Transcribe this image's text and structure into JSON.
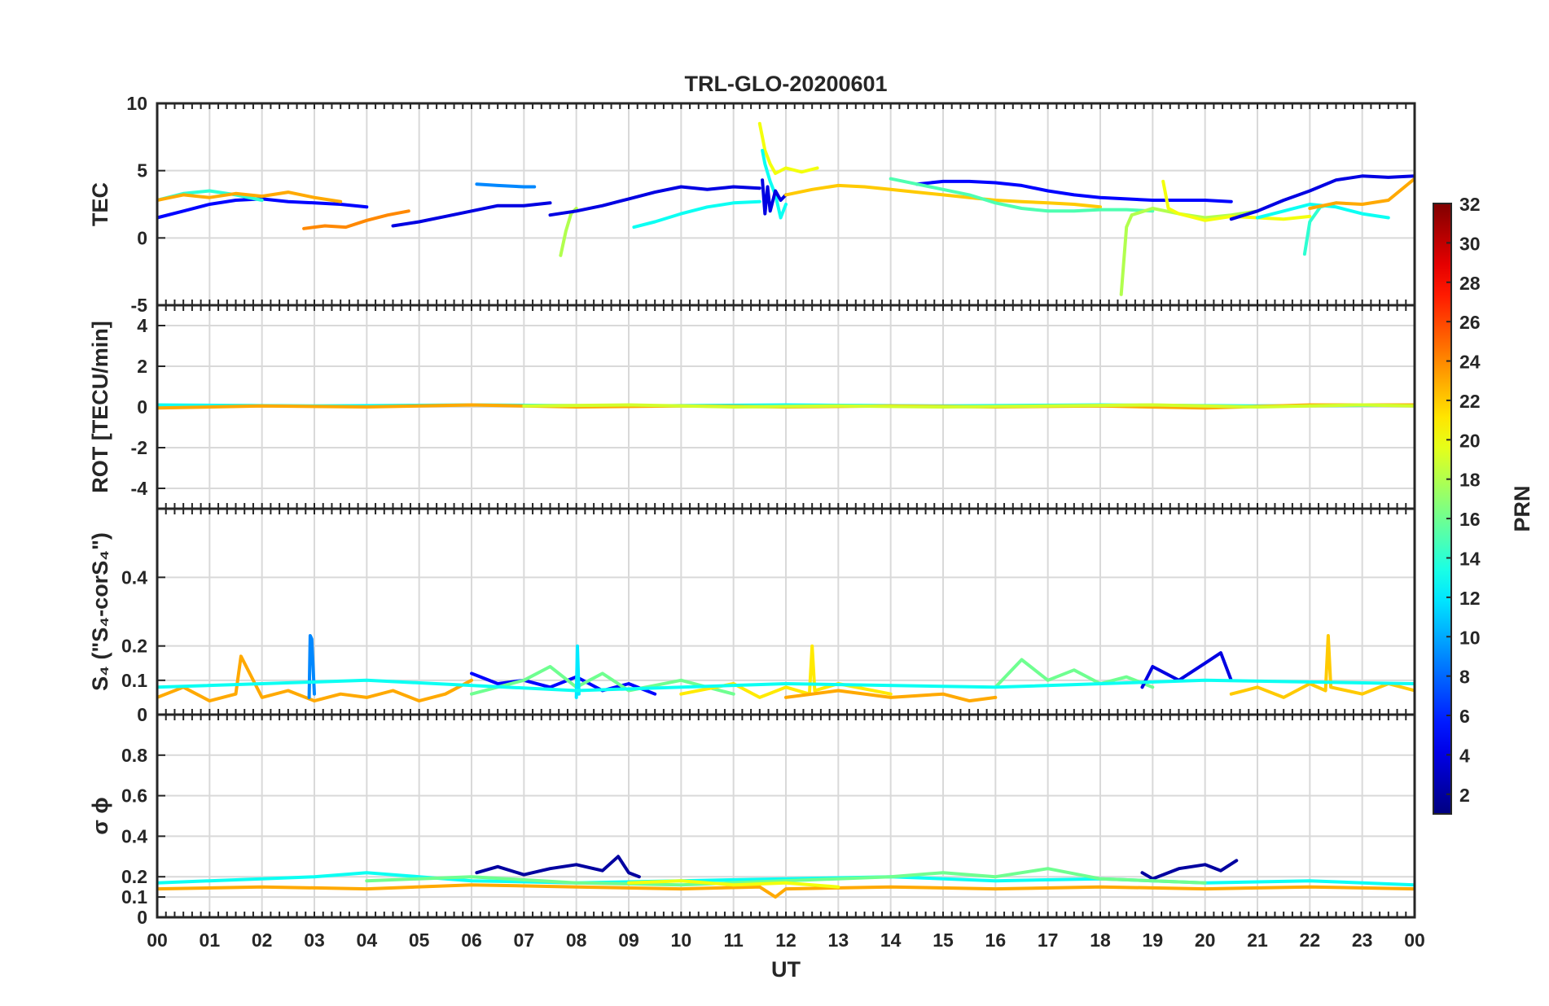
{
  "chart_data": {
    "type": "line",
    "title": "TRL-GLO-20200601",
    "xlabel": "UT",
    "x_tick_labels": [
      "00",
      "01",
      "02",
      "03",
      "04",
      "05",
      "06",
      "07",
      "08",
      "09",
      "10",
      "11",
      "12",
      "13",
      "14",
      "15",
      "16",
      "17",
      "18",
      "19",
      "20",
      "21",
      "22",
      "23",
      "00"
    ],
    "xlim": [
      0,
      24
    ],
    "grid": true,
    "panels": [
      {
        "id": "tec",
        "ylabel": "TEC",
        "ylim": [
          -5,
          10
        ],
        "yticks": [
          -5,
          0,
          5,
          10
        ],
        "ytick_labels": [
          "-5",
          "0",
          "5",
          "10"
        ],
        "series": [
          {
            "prn": 5,
            "x": [
              0,
              0.5,
              1,
              1.5,
              2,
              2.5,
              3,
              3.5,
              4
            ],
            "y": [
              1.5,
              2,
              2.5,
              2.8,
              2.9,
              2.7,
              2.6,
              2.5,
              2.3
            ]
          },
          {
            "prn": 14,
            "x": [
              0,
              0.5,
              1,
              1.5,
              2
            ],
            "y": [
              2.8,
              3.3,
              3.5,
              3.2,
              2.8
            ]
          },
          {
            "prn": 23,
            "x": [
              0,
              0.5,
              1,
              1.5,
              2,
              2.5,
              3,
              3.5
            ],
            "y": [
              2.8,
              3.2,
              3,
              3.3,
              3.1,
              3.4,
              3.0,
              2.7
            ]
          },
          {
            "prn": 24,
            "x": [
              2.8,
              3.2,
              3.6,
              4.0,
              4.4,
              4.8
            ],
            "y": [
              0.7,
              0.9,
              0.8,
              1.3,
              1.7,
              2.0
            ]
          },
          {
            "prn": 4,
            "x": [
              4.5,
              5,
              5.5,
              6,
              6.5,
              7,
              7.5
            ],
            "y": [
              0.9,
              1.2,
              1.6,
              2.0,
              2.4,
              2.4,
              2.6
            ]
          },
          {
            "prn": 9,
            "x": [
              6.1,
              6.5,
              7,
              7.2
            ],
            "y": [
              4.0,
              3.9,
              3.8,
              3.8
            ]
          },
          {
            "prn": 18,
            "x": [
              7.7,
              7.8,
              7.9,
              8.0
            ],
            "y": [
              -1.3,
              0.5,
              1.8,
              2.2
            ]
          },
          {
            "prn": 4,
            "x": [
              7.5,
              8,
              8.5,
              9,
              9.5,
              10,
              10.5,
              11,
              11.5
            ],
            "y": [
              1.7,
              2.0,
              2.4,
              2.9,
              3.4,
              3.8,
              3.6,
              3.8,
              3.7
            ]
          },
          {
            "prn": 13,
            "x": [
              9.1,
              9.5,
              10,
              10.5,
              11,
              11.5
            ],
            "y": [
              0.8,
              1.2,
              1.8,
              2.3,
              2.6,
              2.7
            ]
          },
          {
            "prn": 20,
            "x": [
              11.5,
              11.55,
              11.6,
              11.7,
              11.8,
              12.0,
              12.3,
              12.6
            ],
            "y": [
              8.5,
              7.5,
              6.5,
              5.5,
              4.8,
              5.2,
              4.9,
              5.2
            ]
          },
          {
            "prn": 13,
            "x": [
              11.55,
              11.6,
              11.7,
              11.8,
              11.9,
              12.0
            ],
            "y": [
              6.5,
              5.5,
              4.2,
              3.2,
              1.5,
              2.5
            ]
          },
          {
            "prn": 4,
            "x": [
              11.55,
              11.6,
              11.65,
              11.7,
              11.8,
              11.9,
              12.0
            ],
            "y": [
              4.3,
              1.8,
              3.8,
              2.0,
              3.5,
              2.8,
              3.2
            ]
          },
          {
            "prn": 22,
            "x": [
              12,
              12.5,
              13,
              13.5,
              14,
              14.5,
              15,
              15.5,
              16,
              16.5,
              17,
              17.5,
              18
            ],
            "y": [
              3.2,
              3.6,
              3.9,
              3.8,
              3.6,
              3.4,
              3.2,
              3.0,
              2.8,
              2.7,
              2.6,
              2.5,
              2.3
            ]
          },
          {
            "prn": 5,
            "x": [
              14.5,
              15,
              15.5,
              16,
              16.5,
              17,
              17.5,
              18,
              18.5,
              19,
              19.5,
              20,
              20.5
            ],
            "y": [
              4.0,
              4.2,
              4.2,
              4.1,
              3.9,
              3.5,
              3.2,
              3.0,
              2.9,
              2.8,
              2.8,
              2.8,
              2.7
            ]
          },
          {
            "prn": 15,
            "x": [
              14,
              14.5,
              15,
              15.5,
              16,
              16.5,
              17,
              17.5,
              18,
              18.5,
              19
            ],
            "y": [
              4.4,
              4.0,
              3.6,
              3.2,
              2.6,
              2.2,
              2.0,
              2.0,
              2.1,
              2.1,
              2.0
            ]
          },
          {
            "prn": 18,
            "x": [
              18.4,
              18.5,
              18.6,
              19,
              19.5,
              20,
              20.5,
              21
            ],
            "y": [
              -4.2,
              0.8,
              1.7,
              2.2,
              1.8,
              1.5,
              1.7,
              2.0
            ]
          },
          {
            "prn": 20,
            "x": [
              19.2,
              19.3,
              19.5,
              20,
              20.5,
              21,
              21.5,
              22
            ],
            "y": [
              4.2,
              2.2,
              1.8,
              1.3,
              1.6,
              1.5,
              1.4,
              1.6
            ]
          },
          {
            "prn": 13,
            "x": [
              21,
              21.5,
              22,
              22.5,
              23,
              23.5
            ],
            "y": [
              1.5,
              2.0,
              2.5,
              2.3,
              1.8,
              1.5
            ]
          },
          {
            "prn": 14,
            "x": [
              21.9,
              22.0,
              22.2,
              22.5
            ],
            "y": [
              -1.2,
              1.2,
              2.3,
              2.6
            ]
          },
          {
            "prn": 4,
            "x": [
              20.5,
              21,
              21.5,
              22,
              22.5,
              23,
              23.5,
              24
            ],
            "y": [
              1.4,
              2.0,
              2.8,
              3.5,
              4.3,
              4.6,
              4.5,
              4.6
            ]
          },
          {
            "prn": 23,
            "x": [
              22,
              22.5,
              23,
              23.5,
              24
            ],
            "y": [
              2.2,
              2.6,
              2.5,
              2.8,
              4.4
            ]
          }
        ]
      },
      {
        "id": "rot",
        "ylabel": "ROT [TECU/min]",
        "ylim": [
          -5,
          5
        ],
        "yticks": [
          -4,
          -2,
          0,
          2,
          4
        ],
        "ytick_labels": [
          "-4",
          "-2",
          "0",
          "2",
          "4"
        ],
        "series": [
          {
            "prn": 13,
            "x": [
              0,
              3,
              6,
              9,
              12,
              15,
              18,
              21,
              24
            ],
            "y": [
              0.1,
              0.05,
              0.1,
              0.05,
              0.1,
              0.05,
              0.1,
              0.05,
              0.1
            ]
          },
          {
            "prn": 23,
            "x": [
              0,
              2,
              4,
              6,
              8,
              10,
              12,
              14,
              16,
              18,
              20,
              22,
              24
            ],
            "y": [
              -0.05,
              0.05,
              0.0,
              0.1,
              0.0,
              0.05,
              0.0,
              0.05,
              0.0,
              0.05,
              -0.05,
              0.1,
              0.1
            ]
          },
          {
            "prn": 19,
            "x": [
              7,
              9,
              11,
              13,
              15,
              17,
              19,
              21,
              23,
              24
            ],
            "y": [
              0.05,
              0.1,
              0.0,
              0.05,
              0.0,
              0.05,
              0.1,
              0.0,
              0.1,
              0.05
            ]
          }
        ]
      },
      {
        "id": "s4",
        "ylabel": "S₄ (\"S₄-corS₄\")",
        "ylim": [
          0,
          0.6
        ],
        "yticks": [
          0,
          0.1,
          0.2,
          0.4
        ],
        "ytick_labels": [
          "0",
          "0.1",
          "0.2",
          "0.4"
        ],
        "series": [
          {
            "prn": 23,
            "x": [
              0,
              0.5,
              1,
              1.5,
              1.6,
              2,
              2.5,
              3,
              3.5,
              4,
              4.5,
              5,
              5.5,
              6
            ],
            "y": [
              0.05,
              0.08,
              0.04,
              0.06,
              0.17,
              0.05,
              0.07,
              0.04,
              0.06,
              0.05,
              0.07,
              0.04,
              0.06,
              0.1
            ]
          },
          {
            "prn": 9,
            "x": [
              2.9,
              2.92,
              2.95,
              3.0
            ],
            "y": [
              0.05,
              0.23,
              0.22,
              0.06
            ]
          },
          {
            "prn": 5,
            "x": [
              6,
              6.5,
              7,
              7.5,
              8,
              8.5,
              9,
              9.5
            ],
            "y": [
              0.12,
              0.09,
              0.1,
              0.08,
              0.11,
              0.07,
              0.09,
              0.06
            ]
          },
          {
            "prn": 16,
            "x": [
              6,
              7,
              7.5,
              8,
              8.5,
              9,
              10,
              11
            ],
            "y": [
              0.06,
              0.1,
              0.14,
              0.08,
              0.12,
              0.07,
              0.1,
              0.06
            ]
          },
          {
            "prn": 12,
            "x": [
              8,
              8.02,
              8.05
            ],
            "y": [
              0.05,
              0.2,
              0.06
            ]
          },
          {
            "prn": 21,
            "x": [
              10,
              11,
              11.5,
              12,
              12.45,
              12.5,
              12.55,
              13,
              14
            ],
            "y": [
              0.06,
              0.09,
              0.05,
              0.08,
              0.06,
              0.2,
              0.07,
              0.09,
              0.06
            ]
          },
          {
            "prn": 23,
            "x": [
              12,
              13,
              14,
              15,
              15.5,
              16
            ],
            "y": [
              0.05,
              0.07,
              0.05,
              0.06,
              0.04,
              0.05
            ]
          },
          {
            "prn": 16,
            "x": [
              16,
              16.5,
              17,
              17.5,
              18,
              18.5,
              19
            ],
            "y": [
              0.08,
              0.16,
              0.1,
              0.13,
              0.09,
              0.11,
              0.08
            ]
          },
          {
            "prn": 4,
            "x": [
              18.8,
              19,
              19.5,
              20,
              20.3,
              20.5
            ],
            "y": [
              0.08,
              0.14,
              0.1,
              0.15,
              0.18,
              0.1
            ]
          },
          {
            "prn": 22,
            "x": [
              20.5,
              21,
              21.5,
              22,
              22.3,
              22.35,
              22.4,
              23,
              23.5,
              24
            ],
            "y": [
              0.06,
              0.08,
              0.05,
              0.09,
              0.07,
              0.23,
              0.08,
              0.06,
              0.09,
              0.07
            ]
          },
          {
            "prn": 13,
            "x": [
              0,
              4,
              8,
              12,
              16,
              20,
              24
            ],
            "y": [
              0.08,
              0.1,
              0.07,
              0.09,
              0.08,
              0.1,
              0.09
            ]
          }
        ]
      },
      {
        "id": "sigma_phi",
        "ylabel": "σ ϕ",
        "ylim": [
          0,
          1
        ],
        "yticks": [
          0,
          0.1,
          0.2,
          0.4,
          0.6,
          0.8
        ],
        "ytick_labels": [
          "0",
          "0.1",
          "0.2",
          "0.4",
          "0.6",
          "0.8"
        ],
        "series": [
          {
            "prn": 2,
            "x": [
              6.1,
              6.5,
              7,
              7.5,
              8,
              8.5,
              8.8,
              9,
              9.2
            ],
            "y": [
              0.22,
              0.25,
              0.21,
              0.24,
              0.26,
              0.23,
              0.3,
              0.22,
              0.2
            ]
          },
          {
            "prn": 2,
            "x": [
              18.8,
              19,
              19.5,
              20,
              20.3,
              20.6
            ],
            "y": [
              0.22,
              0.19,
              0.24,
              0.26,
              0.23,
              0.28
            ]
          },
          {
            "prn": 23,
            "x": [
              0,
              2,
              4,
              6,
              8,
              10,
              11.5,
              11.8,
              12,
              14,
              16,
              18,
              20,
              22,
              24
            ],
            "y": [
              0.14,
              0.15,
              0.14,
              0.16,
              0.15,
              0.14,
              0.15,
              0.1,
              0.14,
              0.15,
              0.14,
              0.15,
              0.14,
              0.15,
              0.14
            ]
          },
          {
            "prn": 13,
            "x": [
              0,
              2,
              3,
              4,
              5,
              6,
              8,
              10,
              12,
              14,
              16,
              18,
              20,
              22,
              24
            ],
            "y": [
              0.17,
              0.19,
              0.2,
              0.22,
              0.2,
              0.18,
              0.17,
              0.18,
              0.19,
              0.2,
              0.18,
              0.19,
              0.17,
              0.18,
              0.16
            ]
          },
          {
            "prn": 16,
            "x": [
              4,
              6,
              8,
              10,
              14,
              15,
              16,
              17,
              18,
              20
            ],
            "y": [
              0.18,
              0.2,
              0.17,
              0.16,
              0.2,
              0.22,
              0.2,
              0.24,
              0.19,
              0.17
            ]
          },
          {
            "prn": 20,
            "x": [
              9,
              10,
              11,
              12,
              13
            ],
            "y": [
              0.17,
              0.18,
              0.16,
              0.17,
              0.15
            ]
          }
        ]
      }
    ],
    "colorbar": {
      "label": "PRN",
      "range": [
        1,
        32
      ],
      "ticks": [
        2,
        4,
        6,
        8,
        10,
        12,
        14,
        16,
        18,
        20,
        22,
        24,
        26,
        28,
        30,
        32
      ],
      "colormap": "jet"
    }
  }
}
